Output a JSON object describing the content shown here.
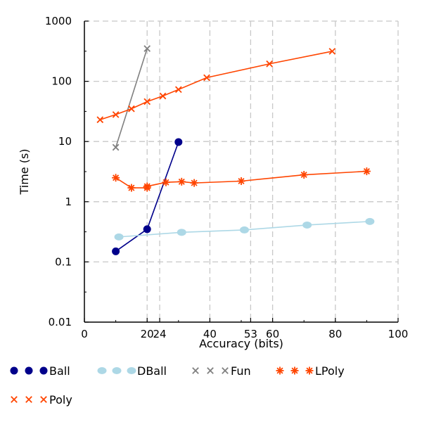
{
  "chart_data": {
    "type": "line",
    "title": "",
    "xlabel": "Accuracy (bits)",
    "ylabel": "Time (s)",
    "x_ticks": [
      0,
      20,
      24,
      40,
      53,
      60,
      80,
      100
    ],
    "x_tick_labels": [
      "0",
      "20",
      "24",
      "40",
      "53",
      "60",
      "80",
      "100"
    ],
    "y_ticks": [
      0.01,
      0.1,
      1,
      10,
      100,
      1000
    ],
    "y_tick_labels": [
      "0.01",
      "0.1",
      "1",
      "10",
      "100",
      "1000"
    ],
    "xlim": [
      0,
      100
    ],
    "ylim": [
      0.01,
      1000
    ],
    "y_scale": "log",
    "grid": true,
    "legend_position": "bottom",
    "series": [
      {
        "name": "Ball",
        "color": "#00008b",
        "marker": "circle",
        "points": [
          [
            10,
            0.15
          ],
          [
            20,
            0.35
          ],
          [
            30,
            9.8
          ]
        ]
      },
      {
        "name": "DBall",
        "color": "#add8e6",
        "marker": "ellipse",
        "points": [
          [
            11,
            0.26
          ],
          [
            31,
            0.31
          ],
          [
            51,
            0.34
          ],
          [
            71,
            0.41
          ],
          [
            91,
            0.47
          ]
        ]
      },
      {
        "name": "Fun",
        "color": "#808080",
        "marker": "x",
        "points": [
          [
            10,
            8
          ],
          [
            20,
            350
          ]
        ]
      },
      {
        "name": "LPoly",
        "color": "#ff4500",
        "marker": "asterisk",
        "points": [
          [
            10,
            2.5
          ],
          [
            15,
            1.7
          ],
          [
            20,
            1.7
          ],
          [
            20,
            1.8
          ],
          [
            26,
            2.1
          ],
          [
            31,
            2.15
          ],
          [
            35,
            2.05
          ],
          [
            50,
            2.2
          ],
          [
            70,
            2.8
          ],
          [
            90,
            3.2
          ]
        ]
      },
      {
        "name": "Poly",
        "color": "#ff4500",
        "marker": "x",
        "points": [
          [
            5,
            23
          ],
          [
            10,
            28
          ],
          [
            15,
            35
          ],
          [
            20,
            46
          ],
          [
            25,
            57
          ],
          [
            30,
            73
          ],
          [
            39,
            115
          ],
          [
            59,
            195
          ],
          [
            79,
            315
          ]
        ]
      }
    ]
  }
}
